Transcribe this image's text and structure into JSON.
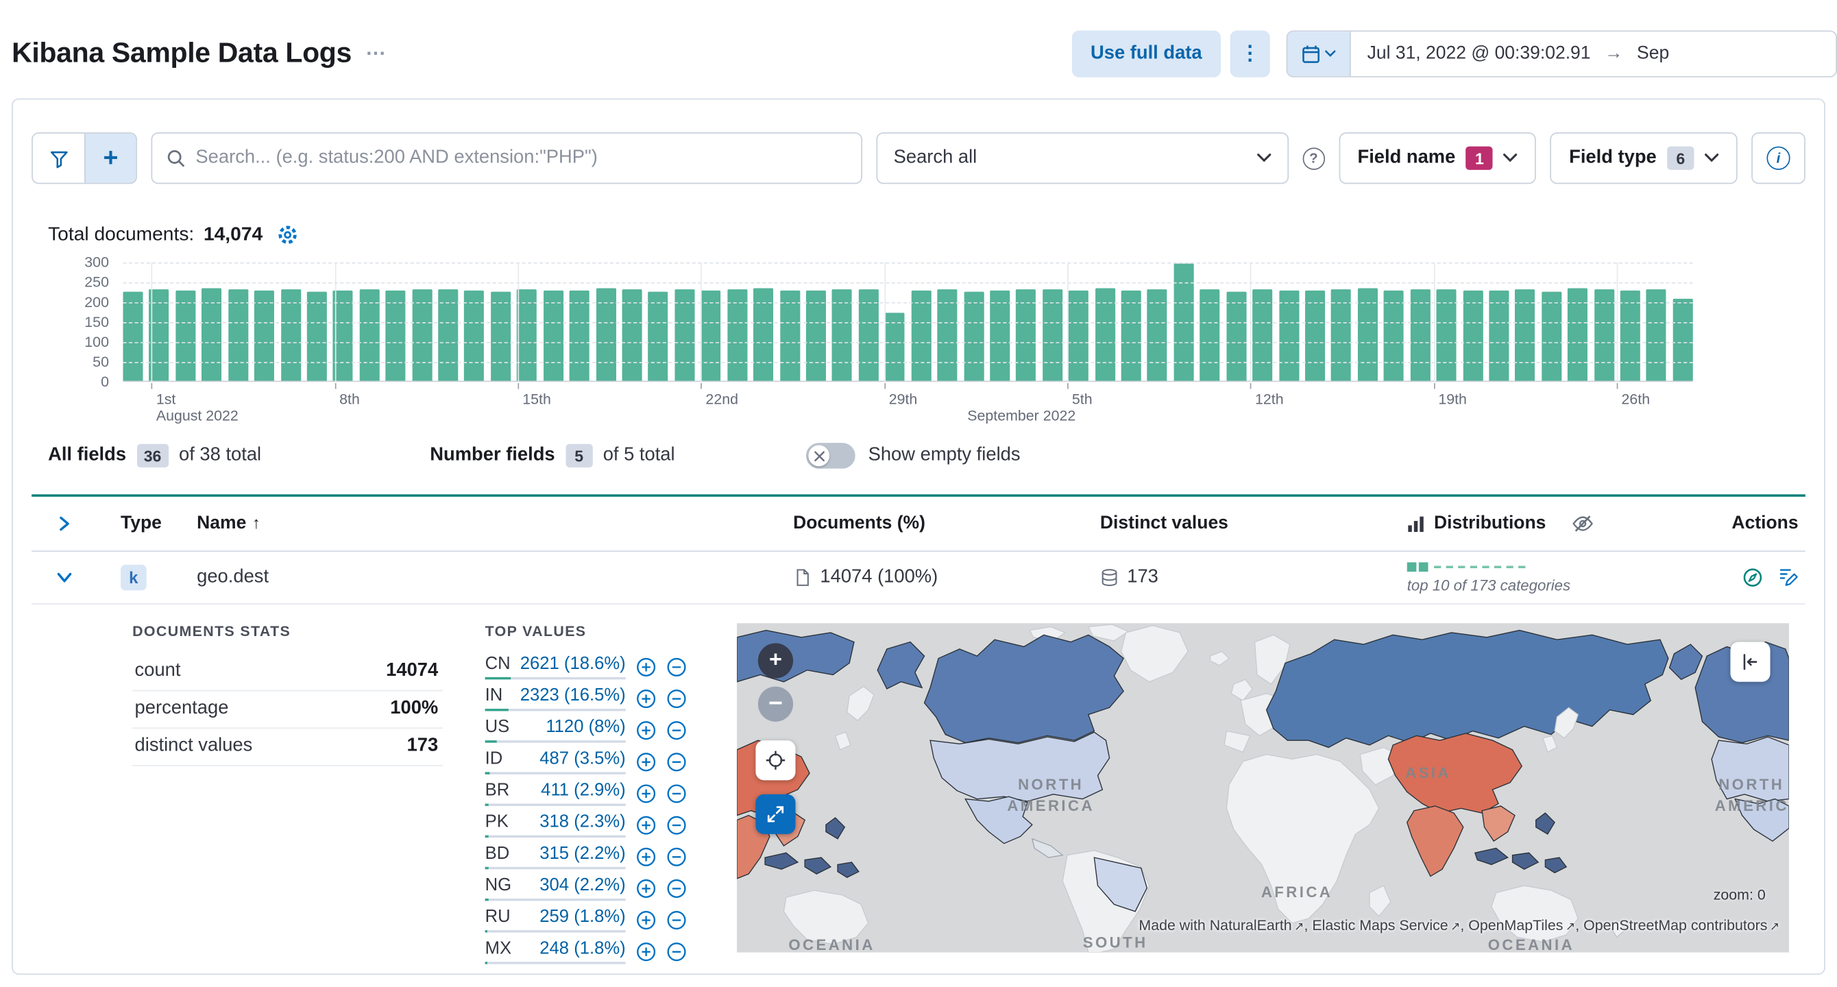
{
  "colors": {
    "bar_green": "#54b399",
    "accent_badge": "#bc2f6f",
    "link_blue": "#0061a6",
    "table_accent": "#007e77",
    "map_orange": "#d96f58",
    "map_dark_blue": "#5a7cb0",
    "map_light_blue": "#c7d2e9"
  },
  "header": {
    "title": "Kibana Sample Data Logs",
    "use_full_data": "Use full data",
    "date_start": "Jul 31, 2022 @ 00:39:02.91",
    "date_arrow": "→",
    "date_end": "Sep"
  },
  "toolbar": {
    "search_placeholder": "Search... (e.g. status:200 AND extension:\"PHP\")",
    "search_all": "Search all",
    "field_name_label": "Field name",
    "field_name_count": "1",
    "field_type_label": "Field type",
    "field_type_count": "6"
  },
  "summary": {
    "total_label": "Total documents:",
    "total_value": "14,074"
  },
  "chart_data": {
    "type": "bar",
    "ylabel": "",
    "xlabel": "",
    "ylim": [
      0,
      300
    ],
    "yticks": [
      0,
      50,
      100,
      150,
      200,
      250,
      300
    ],
    "bar_color": "#54b399",
    "values": [
      224,
      229,
      226,
      233,
      230,
      227,
      229,
      225,
      228,
      231,
      226,
      229,
      231,
      227,
      224,
      230,
      228,
      226,
      232,
      229,
      225,
      231,
      227,
      230,
      233,
      228,
      226,
      229,
      231,
      172,
      227,
      230,
      225,
      228,
      231,
      229,
      226,
      232,
      227,
      230,
      293,
      229,
      225,
      231,
      228,
      226,
      230,
      232,
      227,
      229,
      231,
      226,
      228,
      230,
      225,
      232,
      229,
      227,
      231,
      206
    ],
    "day_ticks": [
      {
        "index": 1,
        "label": "1st"
      },
      {
        "index": 8,
        "label": "8th"
      },
      {
        "index": 15,
        "label": "15th"
      },
      {
        "index": 22,
        "label": "22nd"
      },
      {
        "index": 29,
        "label": "29th"
      },
      {
        "index": 36,
        "label": "5th"
      },
      {
        "index": 43,
        "label": "12th"
      },
      {
        "index": 50,
        "label": "19th"
      },
      {
        "index": 57,
        "label": "26th"
      }
    ],
    "month_labels": [
      {
        "index": 1,
        "label": "August 2022"
      },
      {
        "index": 32,
        "label": "September 2022"
      }
    ]
  },
  "fields_bar": {
    "all_fields_label": "All fields",
    "all_fields_count": "36",
    "all_fields_total": "of 38 total",
    "number_fields_label": "Number fields",
    "number_fields_count": "5",
    "number_fields_total": "of 5 total",
    "show_empty_label": "Show empty fields"
  },
  "table": {
    "headers": {
      "type": "Type",
      "name": "Name",
      "documents": "Documents (%)",
      "distinct": "Distinct values",
      "distributions": "Distributions",
      "actions": "Actions"
    },
    "row": {
      "type_token": "k",
      "name": "geo.dest",
      "documents": "14074 (100%)",
      "distinct": "173",
      "distribution_note": "top 10 of 173 categories"
    }
  },
  "details": {
    "documents_stats": {
      "title": "DOCUMENTS STATS",
      "rows": [
        {
          "label": "count",
          "value": "14074"
        },
        {
          "label": "percentage",
          "value": "100%"
        },
        {
          "label": "distinct values",
          "value": "173"
        }
      ]
    },
    "top_values": {
      "title": "TOP VALUES",
      "items": [
        {
          "code": "CN",
          "display": "2621 (18.6%)",
          "pct": 18.6
        },
        {
          "code": "IN",
          "display": "2323 (16.5%)",
          "pct": 16.5
        },
        {
          "code": "US",
          "display": "1120 (8%)",
          "pct": 8
        },
        {
          "code": "ID",
          "display": "487 (3.5%)",
          "pct": 3.5
        },
        {
          "code": "BR",
          "display": "411 (2.9%)",
          "pct": 2.9
        },
        {
          "code": "PK",
          "display": "318 (2.3%)",
          "pct": 2.3
        },
        {
          "code": "BD",
          "display": "315 (2.2%)",
          "pct": 2.2
        },
        {
          "code": "NG",
          "display": "304 (2.2%)",
          "pct": 2.2
        },
        {
          "code": "RU",
          "display": "259 (1.8%)",
          "pct": 1.8
        },
        {
          "code": "MX",
          "display": "248 (1.8%)",
          "pct": 1.8
        }
      ]
    }
  },
  "map": {
    "region_labels": {
      "north": "NORTH",
      "america": "AMERICA",
      "africa": "AFRICA",
      "south": "SOUTH",
      "oceania": "OCEANIA",
      "asia": "ASIA"
    },
    "zoom_label": "zoom: 0",
    "attribution_prefix": "Made with ",
    "attribution_links": [
      "NaturalEarth",
      "Elastic Maps Service",
      "OpenMapTiles",
      "OpenStreetMap contributors"
    ]
  }
}
